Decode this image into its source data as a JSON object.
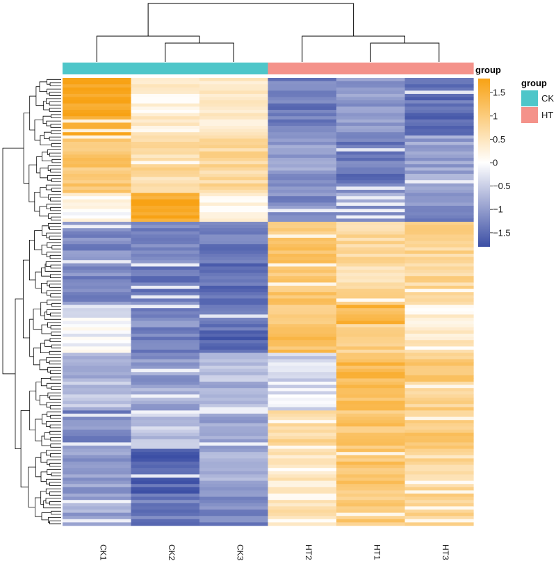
{
  "chart_data": {
    "type": "heatmap",
    "title": "",
    "columns": [
      "CK1",
      "CK2",
      "CK3",
      "HT2",
      "HT1",
      "HT3"
    ],
    "column_groups": [
      "CK",
      "CK",
      "CK",
      "HT",
      "HT",
      "HT"
    ],
    "annotation_title": "group",
    "groups": [
      {
        "name": "CK",
        "color": "#4ec6c9"
      },
      {
        "name": "HT",
        "color": "#f4928a"
      }
    ],
    "color_scale": {
      "title": "group",
      "min": -1.8,
      "max": 1.8,
      "low_color": "#3c4fa5",
      "mid_color": "#ffffff",
      "high_color": "#f8a214",
      "ticks": [
        1.5,
        1,
        0.5,
        0,
        -0.5,
        -1,
        -1.5
      ],
      "tick_labels": [
        "1.5",
        "1",
        "0.5",
        "0",
        "−0.5",
        "−1",
        "−1.5"
      ]
    },
    "row_blocks": [
      {
        "rows": 18,
        "values": [
          1.7,
          0.3,
          0.45,
          -1.3,
          -1.0,
          -1.5
        ]
      },
      {
        "rows": 18,
        "values": [
          1.05,
          0.7,
          0.8,
          -1.0,
          -1.4,
          -0.9
        ]
      },
      {
        "rows": 9,
        "values": [
          0.1,
          1.65,
          0.2,
          -1.2,
          -1.0,
          -1.2
        ]
      },
      {
        "rows": 26,
        "values": [
          -1.2,
          -1.3,
          -1.4,
          1.1,
          0.7,
          0.8
        ]
      },
      {
        "rows": 6,
        "values": [
          -0.2,
          -1.2,
          -1.4,
          0.8,
          1.4,
          0.2
        ]
      },
      {
        "rows": 9,
        "values": [
          -0.1,
          -1.2,
          -1.5,
          1.2,
          0.9,
          0.4
        ]
      },
      {
        "rows": 9,
        "values": [
          -0.8,
          -1.0,
          -0.7,
          -0.4,
          1.3,
          1.0
        ]
      },
      {
        "rows": 9,
        "values": [
          -0.6,
          -0.9,
          -0.8,
          -0.3,
          1.2,
          0.9
        ]
      },
      {
        "rows": 12,
        "values": [
          -1.2,
          -0.6,
          -1.0,
          0.7,
          1.1,
          1.0
        ]
      },
      {
        "rows": 14,
        "values": [
          -1.0,
          -1.6,
          -0.9,
          0.4,
          1.1,
          0.7
        ]
      },
      {
        "rows": 10,
        "values": [
          -0.9,
          -1.3,
          -1.2,
          0.5,
          1.0,
          0.8
        ]
      }
    ],
    "split_after_row": 45,
    "total_rows": 140
  }
}
